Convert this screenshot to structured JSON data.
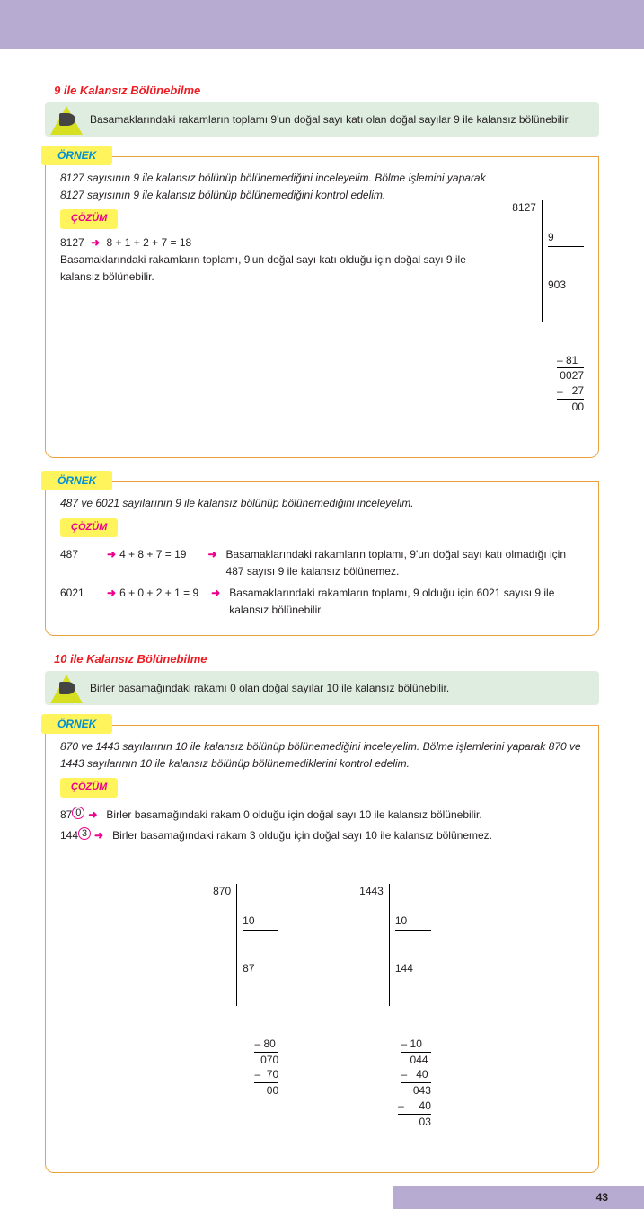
{
  "colors": {
    "header_bg": "#b8abd1",
    "rule_bg": "#dfece0",
    "tab_bg": "#fff45c",
    "ornek_text": "#008fd5",
    "cozum_text": "#ec008c",
    "title_text": "#ed1c24",
    "border": "#e9a23b"
  },
  "section1": {
    "title": "9 ile Kalansız Bölünebilme",
    "rule": "Basamaklarındaki rakamların toplamı 9'un doğal sayı katı olan doğal sayılar 9 ile kalansız bölünebilir."
  },
  "labels": {
    "ornek": "ÖRNEK",
    "cozum": "ÇÖZÜM"
  },
  "ex1": {
    "prompt": "8127 sayısının 9 ile kalansız bölünüp bölünemediğini inceleyelim. Bölme işlemini yaparak  8127 sayısının 9 ile kalansız bölünüp bölünemediğini kontrol edelim.",
    "line1_num": "8127",
    "line1_calc": "8 + 1 + 2 + 7 = 18",
    "concl": "Basamaklarındaki rakamların toplamı, 9'un doğal sayı katı olduğu için doğal sayı 9 ile kalansız bölünebilir.",
    "div": {
      "dividend": "8127",
      "divisor": "9",
      "quotient": "903",
      "steps": [
        "– 81  ",
        "0027",
        "–   27",
        "00"
      ]
    }
  },
  "ex2": {
    "prompt": "487 ve 6021 sayılarının 9 ile kalansız bölünüp bölünemediğini inceleyelim.",
    "r1_num": "487",
    "r1_calc": "4 + 8 + 7 = 19",
    "r1_expl": "Basamaklarındaki rakamların toplamı, 9'un doğal sayı katı olmadığı için 487 sayısı 9 ile kalansız bölünemez.",
    "r2_num": "6021",
    "r2_calc": "6 + 0 + 2 + 1 = 9",
    "r2_expl": "Basamaklarındaki rakamların toplamı, 9 olduğu için 6021 sayısı 9 ile kalansız bölünebilir."
  },
  "section2": {
    "title": "10 ile Kalansız Bölünebilme",
    "rule": "Birler basamağındaki rakamı 0 olan doğal sayılar 10 ile kalansız bölünebilir."
  },
  "ex3": {
    "prompt": "870 ve 1443 sayılarının 10 ile kalansız bölünüp bölünemediğini inceleyelim. Bölme işlemlerini yaparak 870 ve 1443 sayılarının 10 ile kalansız bölünüp bölünemediklerini kontrol edelim.",
    "r1_pre": "87",
    "r1_circ": "0",
    "r1_expl": "Birler basamağındaki rakam 0 olduğu için doğal sayı 10 ile kalansız bölünebilir.",
    "r2_pre": "144",
    "r2_circ": "3",
    "r2_expl": "Birler basamağındaki rakam 3 olduğu için doğal sayı 10 ile kalansız bölünemez.",
    "divA": {
      "dividend": "870",
      "divisor": "10",
      "quotient": "87",
      "steps": [
        "– 80 ",
        "070",
        "–  70",
        "00"
      ]
    },
    "divB": {
      "dividend": "1443",
      "divisor": "10",
      "quotient": "144",
      "steps": [
        "– 10   ",
        "044 ",
        "–   40 ",
        "043",
        "–     40",
        "03"
      ]
    }
  },
  "page_number": "43"
}
